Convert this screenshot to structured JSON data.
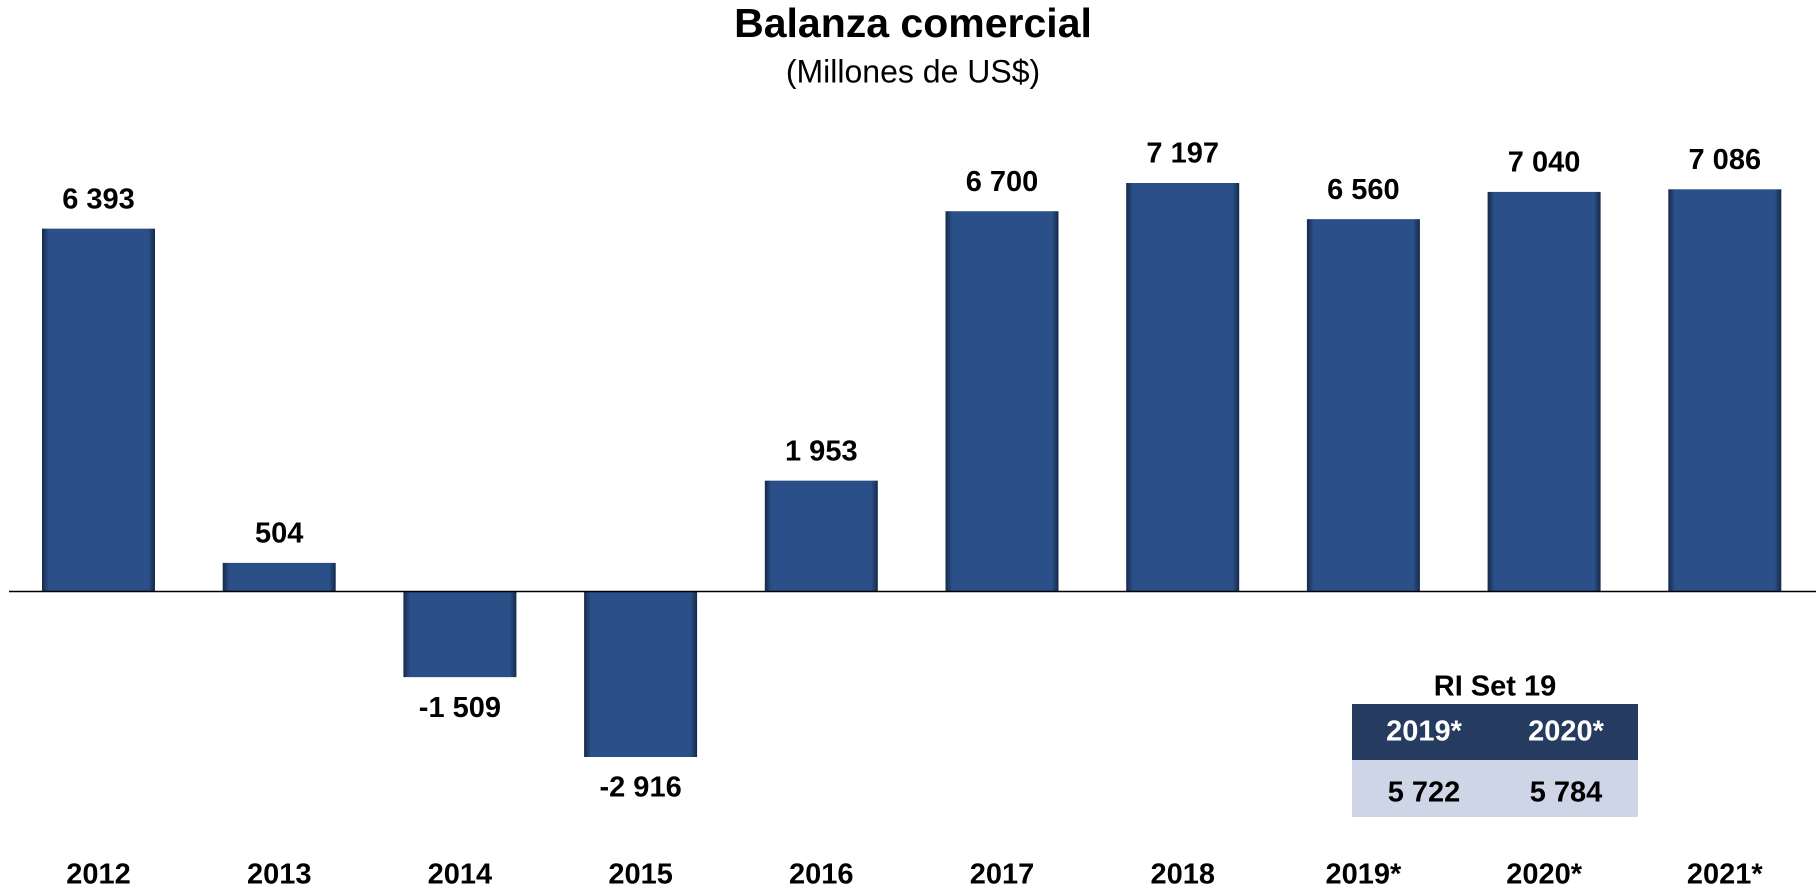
{
  "chart_data": {
    "type": "bar",
    "title": "Balanza comercial",
    "subtitle": "(Millones de US$)",
    "categories": [
      "2012",
      "2013",
      "2014",
      "2015",
      "2016",
      "2017",
      "2018",
      "2019*",
      "2020*",
      "2021*"
    ],
    "values": [
      6393,
      504,
      -1509,
      -2916,
      1953,
      6700,
      7197,
      6560,
      7040,
      7086
    ],
    "value_labels": [
      "6 393",
      "504",
      "-1 509",
      "-2 916",
      "1 953",
      "6 700",
      "7 197",
      "6 560",
      "7 040",
      "7 086"
    ],
    "color": "#2b5089"
  },
  "table": {
    "title": "RI Set 19",
    "columns": [
      "2019*",
      "2020*"
    ],
    "rows": [
      [
        "5 722",
        "5 784"
      ]
    ]
  }
}
